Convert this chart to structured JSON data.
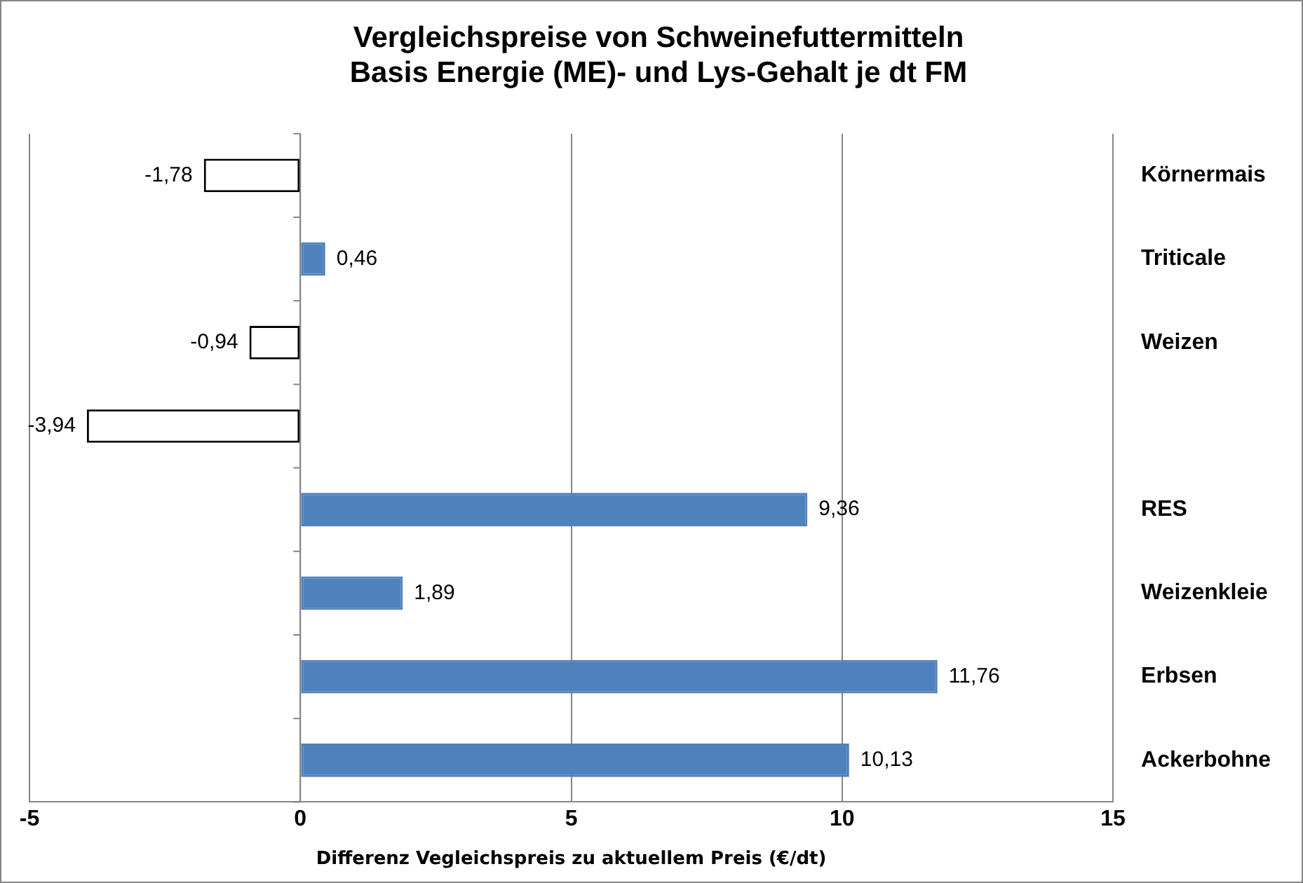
{
  "chart_data": {
    "type": "bar",
    "orientation": "horizontal",
    "title": "Vergleichspreise von Schweinefuttermitteln\nBasis Energie (ME)- und Lys-Gehalt je dt FM",
    "xlabel": "Differenz Vegleichspreis zu aktuellem Preis (€/dt)",
    "categories": [
      "Körnermais",
      "Triticale",
      "Weizen",
      null,
      "RES",
      "Weizenkleie",
      "Erbsen",
      "Ackerbohne"
    ],
    "values": [
      -1.78,
      0.46,
      -0.94,
      -3.94,
      9.36,
      1.89,
      11.76,
      10.13
    ],
    "colors": [
      "#ffffff",
      "#4f81bd",
      "#ffffff",
      "#ffffff",
      "#4f81bd",
      "#4f81bd",
      "#4f81bd",
      "#4f81bd"
    ],
    "value_labels": [
      "-1,78",
      "0,46",
      "-0,94",
      "-3,94",
      "9,36",
      "1,89",
      "11,76",
      "10,13"
    ],
    "xlim": [
      -5,
      15
    ],
    "xticks": [
      -5,
      0,
      5,
      10,
      15
    ],
    "grid": "x",
    "legend": false
  }
}
